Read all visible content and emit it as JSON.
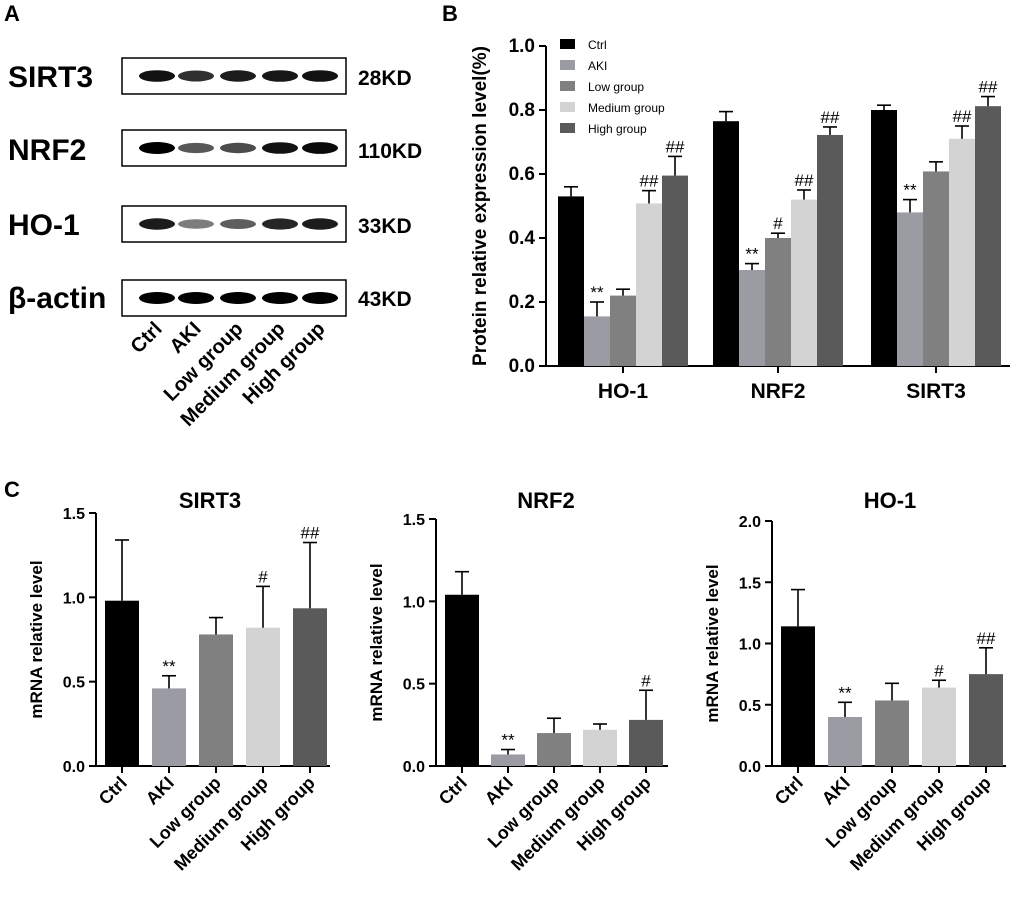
{
  "panels": {
    "a": "A",
    "b": "B",
    "c": "C"
  },
  "blot": {
    "proteins": [
      {
        "name": "SIRT3",
        "kd": "28KD",
        "intensity": [
          0.9,
          0.75,
          0.85,
          0.88,
          0.9
        ]
      },
      {
        "name": "NRF2",
        "kd": "110KD",
        "intensity": [
          1.0,
          0.55,
          0.6,
          0.9,
          0.95
        ]
      },
      {
        "name": "HO-1",
        "kd": "33KD",
        "intensity": [
          0.85,
          0.35,
          0.5,
          0.8,
          0.85
        ]
      },
      {
        "name": "β-actin",
        "kd": "43KD",
        "intensity": [
          1.0,
          1.0,
          1.0,
          1.0,
          1.0
        ]
      }
    ],
    "lanes": [
      "Ctrl",
      "AKI",
      "Low group",
      "Medium group",
      "High group"
    ]
  },
  "colors": {
    "Ctrl": "#000000",
    "AKI": "#9b9ba3",
    "Low group": "#808080",
    "Medium group": "#d3d3d3",
    "High group": "#5a5a5a"
  },
  "chart_data": [
    {
      "id": "B",
      "type": "bar",
      "title": "",
      "xlabel": "",
      "ylabel": "Protein relative expression level(%)",
      "ylim": [
        0,
        1.0
      ],
      "yticks": [
        "0.0",
        "0.2",
        "0.4",
        "0.6",
        "0.8",
        "1.0"
      ],
      "categories": [
        "HO-1",
        "NRF2",
        "SIRT3"
      ],
      "legend": [
        "Ctrl",
        "AKI",
        "Low group",
        "Medium group",
        "High group"
      ],
      "legend_position": "top-left",
      "series": [
        {
          "name": "Ctrl",
          "values": [
            0.53,
            0.765,
            0.8
          ],
          "errors": [
            0.03,
            0.03,
            0.015
          ],
          "sig": [
            "",
            "",
            ""
          ]
        },
        {
          "name": "AKI",
          "values": [
            0.155,
            0.3,
            0.48
          ],
          "errors": [
            0.045,
            0.02,
            0.04
          ],
          "sig": [
            "**",
            "**",
            "**"
          ]
        },
        {
          "name": "Low group",
          "values": [
            0.22,
            0.4,
            0.608
          ],
          "errors": [
            0.02,
            0.015,
            0.03
          ],
          "sig": [
            "",
            "#",
            ""
          ]
        },
        {
          "name": "Medium group",
          "values": [
            0.508,
            0.52,
            0.71
          ],
          "errors": [
            0.04,
            0.03,
            0.04
          ],
          "sig": [
            "##",
            "##",
            "##"
          ]
        },
        {
          "name": "High group",
          "values": [
            0.595,
            0.722,
            0.812
          ],
          "errors": [
            0.06,
            0.025,
            0.03
          ],
          "sig": [
            "##",
            "##",
            "##"
          ]
        }
      ]
    },
    {
      "id": "C1",
      "type": "bar",
      "title": "SIRT3",
      "xlabel": "",
      "ylabel": "mRNA relative level",
      "ylim": [
        0,
        1.5
      ],
      "yticks": [
        "0.0",
        "0.5",
        "1.0",
        "1.5"
      ],
      "categories": [
        "Ctrl",
        "AKI",
        "Low group",
        "Medium group",
        "High group"
      ],
      "values": [
        0.98,
        0.46,
        0.78,
        0.82,
        0.935
      ],
      "errors": [
        0.36,
        0.075,
        0.1,
        0.245,
        0.39
      ],
      "sig": [
        "",
        "**",
        "",
        "#",
        "##"
      ]
    },
    {
      "id": "C2",
      "type": "bar",
      "title": "NRF2",
      "xlabel": "",
      "ylabel": "mRNA relative level",
      "ylim": [
        0,
        1.5
      ],
      "yticks": [
        "0.0",
        "0.5",
        "1.0",
        "1.5"
      ],
      "categories": [
        "Ctrl",
        "AKI",
        "Low group",
        "Medium group",
        "High group"
      ],
      "values": [
        1.04,
        0.07,
        0.2,
        0.22,
        0.28
      ],
      "errors": [
        0.14,
        0.03,
        0.09,
        0.035,
        0.18
      ],
      "sig": [
        "",
        "**",
        "",
        "",
        "#"
      ]
    },
    {
      "id": "C3",
      "type": "bar",
      "title": "HO-1",
      "xlabel": "",
      "ylabel": "mRNA relative level",
      "ylim": [
        0,
        2.0
      ],
      "yticks": [
        "0.0",
        "0.5",
        "1.0",
        "1.5",
        "2.0"
      ],
      "categories": [
        "Ctrl",
        "AKI",
        "Low group",
        "Medium group",
        "High group"
      ],
      "values": [
        1.14,
        0.4,
        0.535,
        0.64,
        0.75
      ],
      "errors": [
        0.3,
        0.12,
        0.14,
        0.06,
        0.215
      ],
      "sig": [
        "",
        "**",
        "",
        "#",
        "##"
      ]
    }
  ]
}
